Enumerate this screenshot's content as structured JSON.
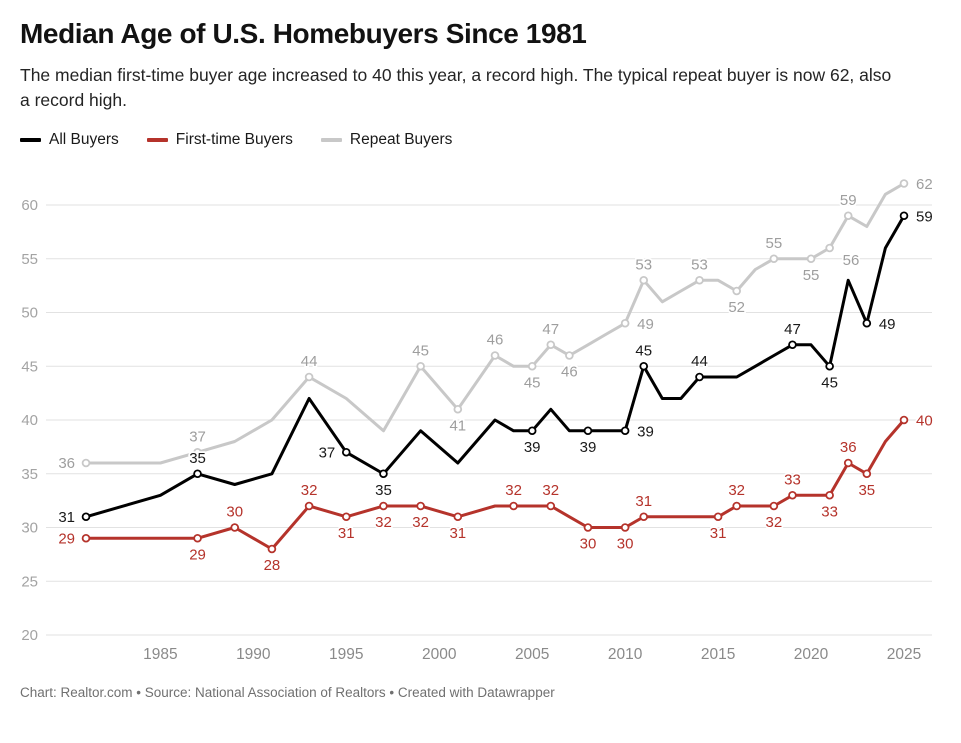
{
  "header": {
    "title": "Median Age of U.S. Homebuyers Since 1981",
    "subtitle": "The median first-time buyer age increased to 40 this year, a record high. The typical repeat buyer is now 62, also a record high."
  },
  "legend": {
    "items": [
      {
        "id": "all-buyers",
        "label": "All Buyers",
        "color": "#000000"
      },
      {
        "id": "first-time-buyers",
        "label": "First-time Buyers",
        "color": "#b5332b"
      },
      {
        "id": "repeat-buyers",
        "label": "Repeat Buyers",
        "color": "#c8c8c8"
      }
    ]
  },
  "chart_data": {
    "type": "line",
    "title": "Median Age of U.S. Homebuyers Since 1981",
    "xlabel": "",
    "ylabel": "",
    "ylim": [
      20,
      63
    ],
    "grid": "horizontal",
    "legend_position": "top",
    "yticks": [
      20,
      25,
      30,
      35,
      40,
      45,
      50,
      55,
      60
    ],
    "xticks": [
      1985,
      1990,
      1995,
      2000,
      2005,
      2010,
      2015,
      2020,
      2025
    ],
    "x": [
      1981,
      1985,
      1987,
      1989,
      1991,
      1993,
      1995,
      1997,
      1999,
      2001,
      2003,
      2004,
      2005,
      2006,
      2007,
      2008,
      2009,
      2010,
      2011,
      2012,
      2013,
      2014,
      2015,
      2016,
      2017,
      2018,
      2019,
      2020,
      2021,
      2022,
      2023,
      2024,
      2025
    ],
    "series": [
      {
        "id": "all-buyers",
        "name": "All Buyers",
        "color": "#000000",
        "label_color": "#1a1a1a",
        "values": [
          31,
          33,
          35,
          34,
          35,
          42,
          37,
          35,
          39,
          36,
          40,
          39,
          39,
          41,
          39,
          39,
          39,
          39,
          45,
          42,
          42,
          44,
          44,
          44,
          45,
          46,
          47,
          47,
          45,
          53,
          49,
          56,
          59
        ],
        "labels": [
          {
            "year": 1981,
            "value": 31,
            "pos": "left"
          },
          {
            "year": 1987,
            "value": 35,
            "pos": "above"
          },
          {
            "year": 1995,
            "value": 37,
            "pos": "left"
          },
          {
            "year": 1997,
            "value": 35,
            "pos": "below"
          },
          {
            "year": 2005,
            "value": 39,
            "pos": "below"
          },
          {
            "year": 2008,
            "value": 39,
            "pos": "below"
          },
          {
            "year": 2010,
            "value": 39,
            "pos": "right"
          },
          {
            "year": 2011,
            "value": 45,
            "pos": "above"
          },
          {
            "year": 2014,
            "value": 44,
            "pos": "above"
          },
          {
            "year": 2019,
            "value": 47,
            "pos": "above"
          },
          {
            "year": 2021,
            "value": 45,
            "pos": "below"
          },
          {
            "year": 2023,
            "value": 49,
            "pos": "right"
          },
          {
            "year": 2025,
            "value": 59,
            "pos": "right"
          }
        ]
      },
      {
        "id": "first-time-buyers",
        "name": "First-time Buyers",
        "color": "#b5332b",
        "label_color": "#b5332b",
        "values": [
          29,
          29,
          29,
          30,
          28,
          32,
          31,
          32,
          32,
          31,
          32,
          32,
          32,
          32,
          31,
          30,
          30,
          30,
          31,
          31,
          31,
          31,
          31,
          32,
          32,
          32,
          33,
          33,
          33,
          36,
          35,
          38,
          40
        ],
        "labels": [
          {
            "year": 1981,
            "value": 29,
            "pos": "left"
          },
          {
            "year": 1987,
            "value": 29,
            "pos": "below"
          },
          {
            "year": 1989,
            "value": 30,
            "pos": "above"
          },
          {
            "year": 1991,
            "value": 28,
            "pos": "below"
          },
          {
            "year": 1993,
            "value": 32,
            "pos": "above"
          },
          {
            "year": 1995,
            "value": 31,
            "pos": "below"
          },
          {
            "year": 1997,
            "value": 32,
            "pos": "below"
          },
          {
            "year": 1999,
            "value": 32,
            "pos": "below"
          },
          {
            "year": 2001,
            "value": 31,
            "pos": "below"
          },
          {
            "year": 2004,
            "value": 32,
            "pos": "above"
          },
          {
            "year": 2006,
            "value": 32,
            "pos": "above"
          },
          {
            "year": 2008,
            "value": 30,
            "pos": "below"
          },
          {
            "year": 2010,
            "value": 30,
            "pos": "below"
          },
          {
            "year": 2011,
            "value": 31,
            "pos": "above"
          },
          {
            "year": 2015,
            "value": 31,
            "pos": "below"
          },
          {
            "year": 2016,
            "value": 32,
            "pos": "above"
          },
          {
            "year": 2018,
            "value": 32,
            "pos": "below"
          },
          {
            "year": 2019,
            "value": 33,
            "pos": "above"
          },
          {
            "year": 2021,
            "value": 33,
            "pos": "below"
          },
          {
            "year": 2022,
            "value": 36,
            "pos": "above"
          },
          {
            "year": 2023,
            "value": 35,
            "pos": "below"
          },
          {
            "year": 2025,
            "value": 40,
            "pos": "right"
          }
        ]
      },
      {
        "id": "repeat-buyers",
        "name": "Repeat Buyers",
        "color": "#c8c8c8",
        "label_color": "#9e9e9e",
        "values": [
          36,
          36,
          37,
          38,
          40,
          44,
          42,
          39,
          45,
          41,
          46,
          45,
          45,
          47,
          46,
          47,
          48,
          49,
          53,
          51,
          52,
          53,
          53,
          52,
          54,
          55,
          55,
          55,
          56,
          59,
          58,
          61,
          62
        ],
        "labels": [
          {
            "year": 1981,
            "value": 36,
            "pos": "left"
          },
          {
            "year": 1987,
            "value": 37,
            "pos": "above"
          },
          {
            "year": 1993,
            "value": 44,
            "pos": "above"
          },
          {
            "year": 1999,
            "value": 45,
            "pos": "above"
          },
          {
            "year": 2001,
            "value": 41,
            "pos": "below"
          },
          {
            "year": 2003,
            "value": 46,
            "pos": "above"
          },
          {
            "year": 2005,
            "value": 45,
            "pos": "below"
          },
          {
            "year": 2006,
            "value": 47,
            "pos": "above"
          },
          {
            "year": 2007,
            "value": 46,
            "pos": "below"
          },
          {
            "year": 2010,
            "value": 49,
            "pos": "right"
          },
          {
            "year": 2011,
            "value": 53,
            "pos": "above"
          },
          {
            "year": 2014,
            "value": 53,
            "pos": "above"
          },
          {
            "year": 2016,
            "value": 52,
            "pos": "below"
          },
          {
            "year": 2018,
            "value": 55,
            "pos": "above"
          },
          {
            "year": 2020,
            "value": 55,
            "pos": "below"
          },
          {
            "year": 2021,
            "value": 56,
            "pos": "below-right"
          },
          {
            "year": 2022,
            "value": 59,
            "pos": "above"
          },
          {
            "year": 2025,
            "value": 62,
            "pos": "right"
          }
        ]
      }
    ]
  },
  "footer": {
    "text": "Chart: Realtor.com • Source: National Association of Realtors • Created with Datawrapper"
  }
}
